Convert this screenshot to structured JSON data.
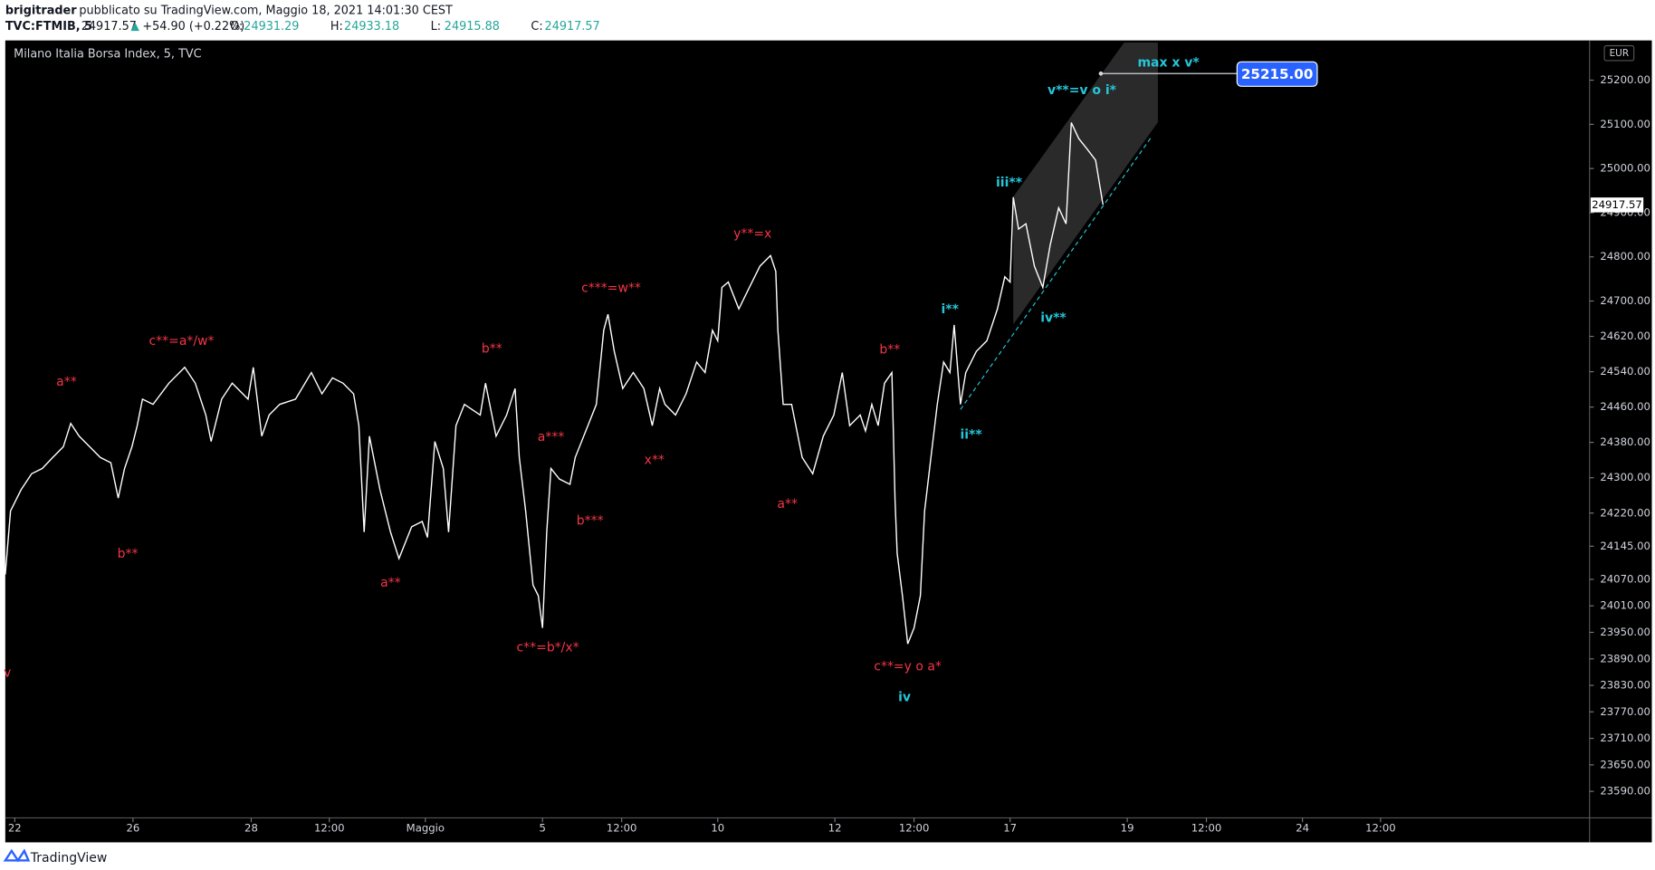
{
  "header": {
    "author": "brigitrader",
    "published": "pubblicato su TradingView.com, Maggio 18, 2021 14:01:30 CEST",
    "symbol": "TVC:FTMIB, 5",
    "last": "24917.57",
    "change": "+54.90 (+0.22%)",
    "ohlc": [
      {
        "label": "O:",
        "value": "24931.29"
      },
      {
        "label": "H:",
        "value": "24933.18"
      },
      {
        "label": "L:",
        "value": "24915.88"
      },
      {
        "label": "C:",
        "value": "24917.57"
      }
    ]
  },
  "chart_data": {
    "type": "line",
    "title": "Milano Italia Borsa Index, 5, TVC",
    "currency": "EUR",
    "xlim": [
      0,
      1500
    ],
    "ylim": [
      23530,
      25290
    ],
    "xticks": [
      {
        "value": 9,
        "label": "22"
      },
      {
        "value": 121,
        "label": "26"
      },
      {
        "value": 233,
        "label": "28"
      },
      {
        "value": 307,
        "label": "12:00"
      },
      {
        "value": 398,
        "label": "Maggio"
      },
      {
        "value": 509,
        "label": "5"
      },
      {
        "value": 584,
        "label": "12:00"
      },
      {
        "value": 675,
        "label": "10"
      },
      {
        "value": 786,
        "label": "12"
      },
      {
        "value": 861,
        "label": "12:00"
      },
      {
        "value": 952,
        "label": "17"
      },
      {
        "value": 1063,
        "label": "19"
      },
      {
        "value": 1138,
        "label": "12:00"
      },
      {
        "value": 1229,
        "label": "24"
      },
      {
        "value": 1303,
        "label": "12:00"
      }
    ],
    "yticks": [
      {
        "value": 25200,
        "label": "25200.00"
      },
      {
        "value": 25100,
        "label": "25100.00"
      },
      {
        "value": 25000,
        "label": "25000.00"
      },
      {
        "value": 24900,
        "label": "24900.00"
      },
      {
        "value": 24800,
        "label": "24800.00"
      },
      {
        "value": 24700,
        "label": "24700.00"
      },
      {
        "value": 24620,
        "label": "24620.00"
      },
      {
        "value": 24540,
        "label": "24540.00"
      },
      {
        "value": 24460,
        "label": "24460.00"
      },
      {
        "value": 24380,
        "label": "24380.00"
      },
      {
        "value": 24300,
        "label": "24300.00"
      },
      {
        "value": 24220,
        "label": "24220.00"
      },
      {
        "value": 24145,
        "label": "24145.00"
      },
      {
        "value": 24070,
        "label": "24070.00"
      },
      {
        "value": 24010,
        "label": "24010.00"
      },
      {
        "value": 23950,
        "label": "23950.00"
      },
      {
        "value": 23890,
        "label": "23890.00"
      },
      {
        "value": 23830,
        "label": "23830.00"
      },
      {
        "value": 23770,
        "label": "23770.00"
      },
      {
        "value": 23710,
        "label": "23710.00"
      },
      {
        "value": 23650,
        "label": "23650.00"
      },
      {
        "value": 23590,
        "label": "23590.00"
      }
    ],
    "series": [
      {
        "color": "#ffffff",
        "x": [
          0,
          5,
          15,
          25,
          35,
          45,
          55,
          62,
          70,
          80,
          90,
          100,
          107,
          113,
          120,
          125,
          130,
          140,
          155,
          170,
          180,
          190,
          195,
          205,
          215,
          230,
          235,
          243,
          250,
          260,
          275,
          290,
          300,
          310,
          320,
          330,
          335,
          340,
          345,
          355,
          365,
          373,
          385,
          395,
          400,
          407,
          415,
          420,
          427,
          435,
          450,
          455,
          465,
          475,
          483,
          487,
          493,
          500,
          505,
          509,
          513,
          517,
          525,
          535,
          540,
          550,
          560,
          567,
          571,
          577,
          585,
          595,
          605,
          613,
          620,
          625,
          635,
          645,
          655,
          663,
          670,
          675,
          679,
          685,
          695,
          705,
          715,
          725,
          730,
          732,
          737,
          745,
          755,
          765,
          775,
          785,
          793,
          800,
          810,
          815,
          821,
          827,
          833,
          840,
          843,
          845,
          850,
          855,
          861,
          867,
          871,
          877,
          883,
          889,
          895,
          899,
          905,
          910,
          920,
          930,
          940,
          947,
          952,
          955,
          960,
          967,
          975,
          983,
          990,
          998,
          1005,
          1010,
          1017,
          1025,
          1033,
          1040
        ],
        "values": [
          24081,
          24225,
          24273,
          24309,
          24321,
          24346,
          24370,
          24423,
          24394,
          24370,
          24346,
          24334,
          24254,
          24321,
          24370,
          24418,
          24478,
          24466,
          24514,
          24550,
          24514,
          24442,
          24382,
          24478,
          24514,
          24478,
          24550,
          24394,
          24442,
          24466,
          24478,
          24538,
          24490,
          24526,
          24514,
          24490,
          24418,
          24177,
          24394,
          24273,
          24177,
          24117,
          24189,
          24201,
          24165,
          24382,
          24321,
          24177,
          24418,
          24466,
          24442,
          24514,
          24394,
          24442,
          24502,
          24346,
          24225,
          24057,
          24033,
          23960,
          24177,
          24321,
          24297,
          24285,
          24346,
          24406,
          24466,
          24634,
          24670,
          24586,
          24502,
          24538,
          24502,
          24418,
          24502,
          24466,
          24442,
          24490,
          24562,
          24538,
          24634,
          24610,
          24731,
          24743,
          24682,
          24731,
          24779,
          24803,
          24767,
          24634,
          24466,
          24466,
          24346,
          24309,
          24394,
          24442,
          24538,
          24418,
          24442,
          24406,
          24466,
          24418,
          24514,
          24538,
          24249,
          24129,
          24033,
          23924,
          23960,
          24033,
          24225,
          24346,
          24466,
          24562,
          24538,
          24646,
          24466,
          24538,
          24586,
          24610,
          24682,
          24755,
          24743,
          24935,
          24863,
          24875,
          24779,
          24731,
          24827,
          24911,
          24875,
          25104,
          25068,
          25044,
          25019,
          24918
        ]
      }
    ],
    "last_price": 24917.57,
    "target": {
      "value": 25215,
      "label": "25215.00"
    },
    "annotations": [
      {
        "text": "v",
        "color": "#f23645"
      },
      {
        "text": "a**",
        "color": "#f23645"
      },
      {
        "text": "b**",
        "color": "#f23645"
      },
      {
        "text": "c**=a*/w*",
        "color": "#f23645"
      },
      {
        "text": "a**",
        "color": "#f23645"
      },
      {
        "text": "b**",
        "color": "#f23645"
      },
      {
        "text": "c**=b*/x*",
        "color": "#f23645"
      },
      {
        "text": "a***",
        "color": "#f23645"
      },
      {
        "text": "b***",
        "color": "#f23645"
      },
      {
        "text": "c***=w**",
        "color": "#f23645"
      },
      {
        "text": "x**",
        "color": "#f23645"
      },
      {
        "text": "y**=x",
        "color": "#f23645"
      },
      {
        "text": "a**",
        "color": "#f23645"
      },
      {
        "text": "b**",
        "color": "#f23645"
      },
      {
        "text": "c**=y o a*",
        "color": "#f23645"
      },
      {
        "text": "iv",
        "color": "#26c6da"
      },
      {
        "text": "i**",
        "color": "#26c6da"
      },
      {
        "text": "ii**",
        "color": "#26c6da"
      },
      {
        "text": "iii**",
        "color": "#26c6da"
      },
      {
        "text": "iv**",
        "color": "#26c6da"
      },
      {
        "text": "v**=v o i*",
        "color": "#26c6da"
      },
      {
        "text": "max x v*",
        "color": "#26c6da"
      }
    ]
  },
  "footer": {
    "brand": "TradingView"
  }
}
